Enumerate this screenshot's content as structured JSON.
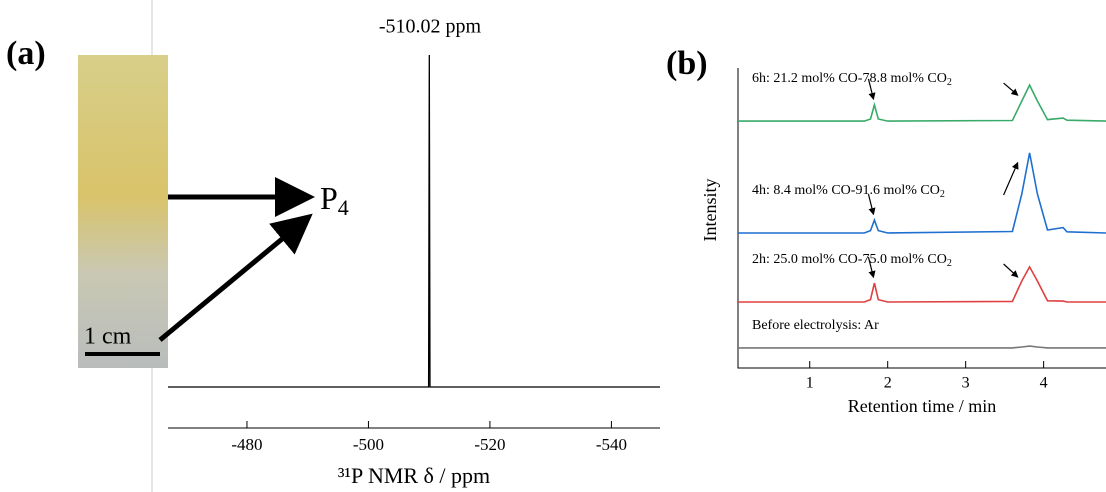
{
  "panel_labels": [
    "(a)",
    "(b)"
  ],
  "photo": {
    "scale": "1 cm",
    "species": "P",
    "species_sub": "4"
  },
  "chart_data": [
    {
      "type": "line",
      "annotation": "-510.02 ppm",
      "xlabel": "³¹P NMR δ / ppm",
      "x": [
        -467,
        -509.9,
        -510.02,
        -510.14,
        -548
      ],
      "series": [
        {
          "color": "#000000",
          "values": [
            0,
            0,
            100,
            0,
            0
          ]
        }
      ],
      "xlim": [
        -467,
        -548
      ],
      "ylim": [
        0,
        100
      ],
      "xticks": [
        -480,
        -500,
        -520,
        -540
      ]
    },
    {
      "type": "line",
      "xlabel": "Retention time / min",
      "ylabel": "Intensity",
      "x": [
        0.08,
        1.7,
        1.78,
        1.83,
        1.88,
        2.0,
        3.6,
        3.72,
        3.82,
        3.92,
        4.05,
        4.25,
        4.3,
        4.8
      ],
      "series": [
        {
          "color": "#3aaa6a",
          "values": [
            82.3,
            82.3,
            83,
            87.7,
            83,
            82.3,
            82.5,
            89,
            94.3,
            89,
            82.8,
            83.3,
            82.6,
            82.3
          ]
        },
        {
          "color": "#1f6fd0",
          "values": [
            45,
            45,
            45.8,
            49.3,
            45.8,
            45,
            45.5,
            58,
            71.7,
            58,
            46,
            46.8,
            45.4,
            45
          ]
        },
        {
          "color": "#e04040",
          "values": [
            22,
            22,
            22.8,
            28.3,
            22.8,
            22,
            22.2,
            29,
            33.7,
            29,
            22.4,
            22.3,
            22,
            22
          ]
        },
        {
          "color": "#777777",
          "values": [
            6.7,
            6.7,
            6.7,
            6.7,
            6.7,
            6.7,
            6.7,
            7,
            7.3,
            7,
            6.7,
            6.7,
            6.7,
            6.7
          ]
        }
      ],
      "annotations": [
        {
          "text": "6h: 21.2 mol% CO-78.8 mol% CO",
          "sub": "2"
        },
        {
          "text": "4h:  8.4 mol% CO-91.6 mol% CO",
          "sub": "2"
        },
        {
          "text": "2h: 25.0 mol% CO-75.0 mol% CO",
          "sub": "2"
        },
        {
          "text": "Before electrolysis: Ar"
        }
      ],
      "xlim": [
        0.08,
        4.8
      ],
      "ylim": [
        0,
        100
      ],
      "xticks": [
        1,
        2,
        3,
        4
      ]
    }
  ]
}
